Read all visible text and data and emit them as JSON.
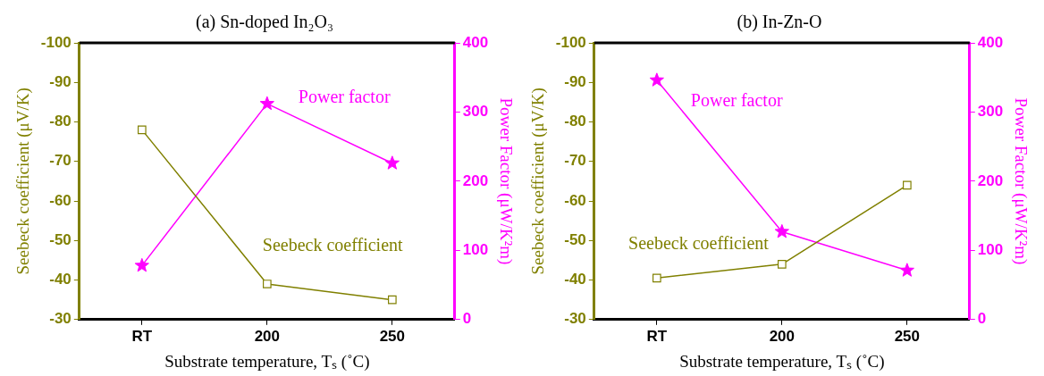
{
  "chart_data": [
    {
      "type": "line",
      "title": "(a) Sn-doped In₂O₃",
      "xlabel": "Substrate temperature, Tₛ (˚C)",
      "ylabel": "Seebeck coefficient (μV/K)",
      "y2label": "Power Factor (μW/K²m)",
      "categories": [
        "RT",
        "200",
        "250"
      ],
      "ylim": [
        -30,
        -100
      ],
      "yticks": [
        -100,
        -90,
        -80,
        -70,
        -60,
        -50,
        -40,
        -30
      ],
      "y2lim": [
        0,
        400
      ],
      "y2ticks": [
        0,
        100,
        200,
        300,
        400
      ],
      "grid": false,
      "legend": false,
      "series": [
        {
          "name": "Seebeck coefficient",
          "color": "#808000",
          "marker": "square",
          "values": [
            -78,
            -39,
            -35
          ]
        },
        {
          "name": "Power factor",
          "color": "#ff00ff",
          "marker": "star",
          "axis": "y2",
          "values": [
            78,
            312,
            226
          ]
        }
      ]
    },
    {
      "type": "line",
      "title": "(b) In-Zn-O",
      "xlabel": "Substrate temperature, Tₛ (˚C)",
      "ylabel": "Seebeck coefficient (μV/K)",
      "y2label": "Power Factor (μW/K²m)",
      "categories": [
        "RT",
        "200",
        "250"
      ],
      "ylim": [
        -30,
        -100
      ],
      "yticks": [
        -100,
        -90,
        -80,
        -70,
        -60,
        -50,
        -40,
        -30
      ],
      "y2lim": [
        0,
        400
      ],
      "y2ticks": [
        0,
        100,
        200,
        300,
        400
      ],
      "grid": false,
      "legend": false,
      "series": [
        {
          "name": "Seebeck coefficient",
          "color": "#808000",
          "marker": "square",
          "values": [
            -40.5,
            -44,
            -64
          ]
        },
        {
          "name": "Power factor",
          "color": "#ff00ff",
          "marker": "star",
          "axis": "y2",
          "values": [
            346,
            127,
            71
          ]
        }
      ]
    }
  ]
}
